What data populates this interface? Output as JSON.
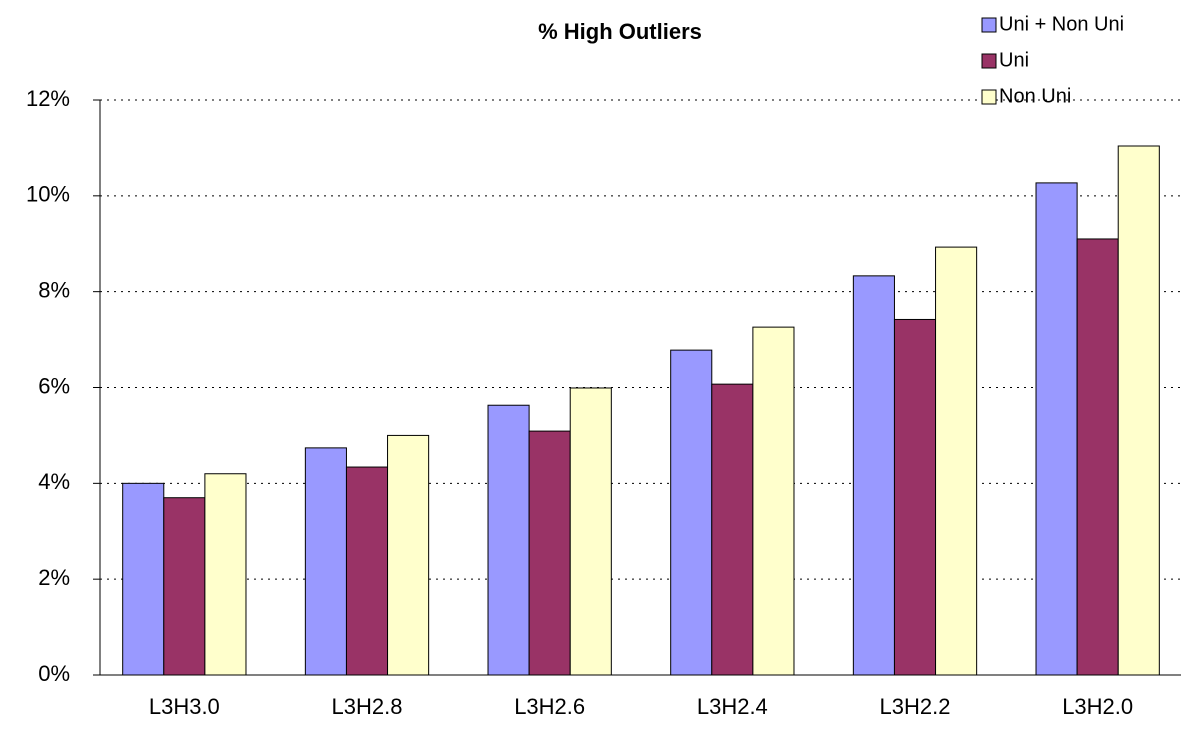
{
  "chart_data": {
    "type": "bar",
    "title": "% High Outliers",
    "categories": [
      "L3H3.0",
      "L3H2.8",
      "L3H2.6",
      "L3H2.4",
      "L3H2.2",
      "L3H2.0"
    ],
    "series": [
      {
        "name": "Uni + Non Uni",
        "color": "#9999ff",
        "values": [
          4.0,
          4.74,
          5.63,
          6.78,
          8.33,
          10.27
        ]
      },
      {
        "name": "Uni",
        "color": "#993366",
        "values": [
          3.7,
          4.34,
          5.09,
          6.07,
          7.42,
          9.1
        ]
      },
      {
        "name": "Non Uni",
        "color": "#ffffcc",
        "values": [
          4.2,
          5.0,
          5.99,
          7.26,
          8.93,
          11.04
        ]
      }
    ],
    "ylim": [
      0,
      12
    ],
    "yticks": [
      {
        "value": 0,
        "label": "0%"
      },
      {
        "value": 2,
        "label": "2%"
      },
      {
        "value": 4,
        "label": "4%"
      },
      {
        "value": 6,
        "label": "6%"
      },
      {
        "value": 8,
        "label": "8%"
      },
      {
        "value": 10,
        "label": "10%"
      },
      {
        "value": 12,
        "label": "12%"
      }
    ],
    "grid": true,
    "legend": "top-right"
  }
}
